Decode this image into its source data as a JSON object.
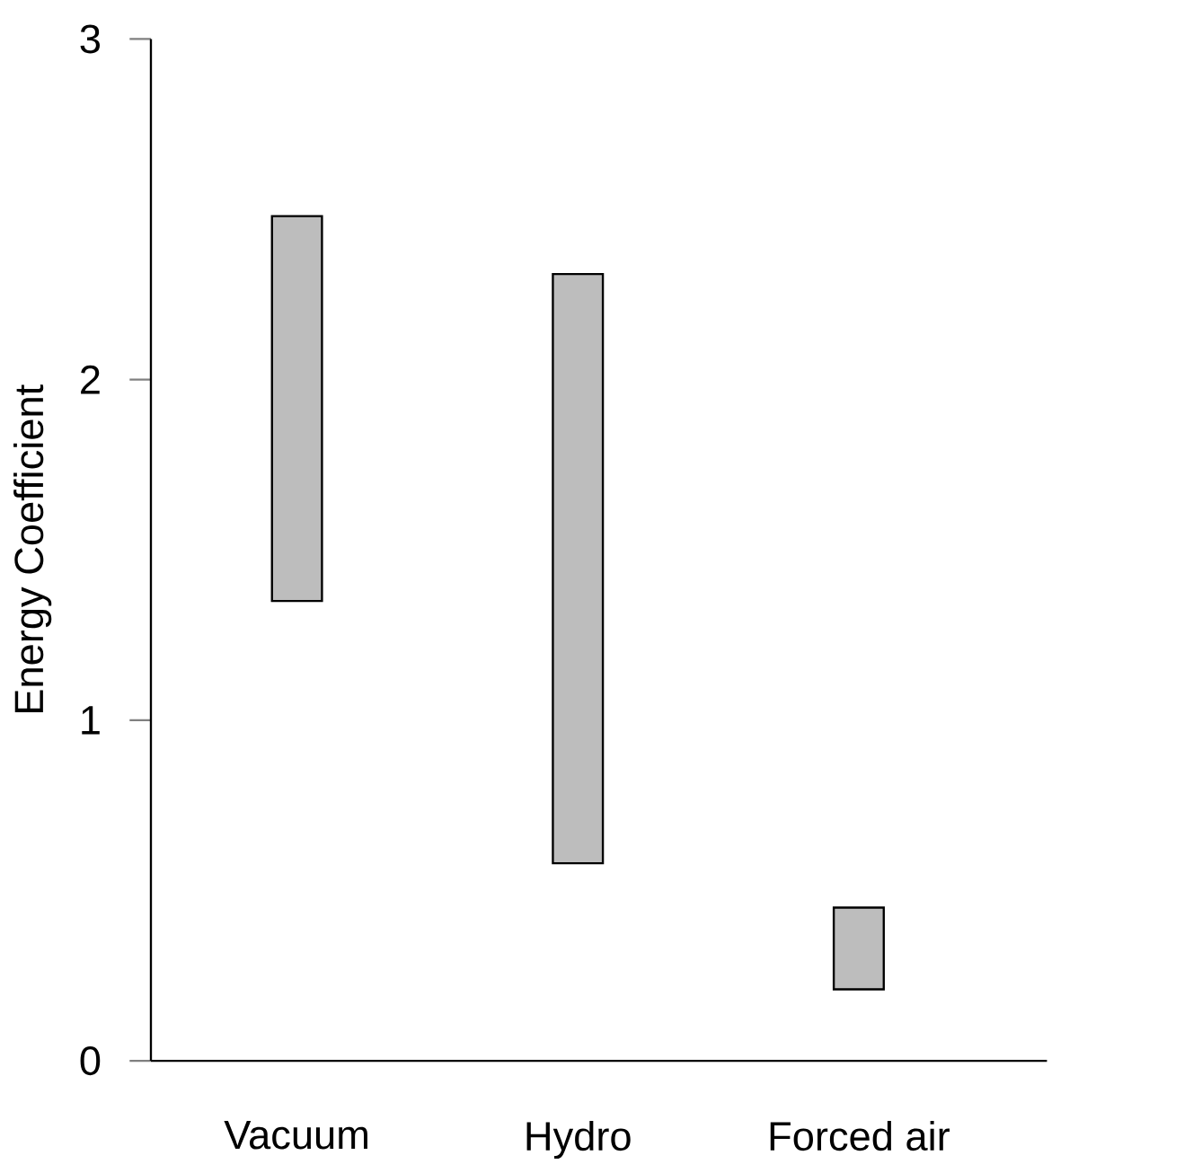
{
  "chart_data": {
    "type": "bar",
    "ylabel": "Energy Coefficient",
    "categories": [
      "Vacuum",
      "Hydro",
      "Forced air"
    ],
    "base": [
      1.35,
      0.58,
      0.21
    ],
    "values": [
      1.13,
      1.73,
      0.24
    ],
    "color": "#bdbdbd",
    "ylim": [
      0,
      3
    ],
    "yticks": [
      0,
      1,
      2,
      3
    ]
  }
}
